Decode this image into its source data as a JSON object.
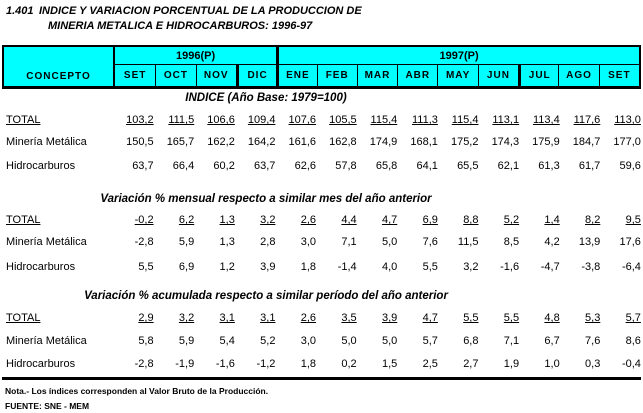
{
  "title": {
    "number": "1.401",
    "line1": "INDICE Y VARIACION PORCENTUAL DE LA PRODUCCION DE",
    "line2": "MINERIA METALICA E HIDROCARBUROS: 1996-97"
  },
  "table": {
    "concept_header": "CONCEPTO",
    "year_groups": [
      {
        "label": "1996(P)",
        "span": 4
      },
      {
        "label": "1997(P)",
        "span": 9
      }
    ],
    "months": [
      "SET",
      "OCT",
      "NOV",
      "DIC",
      "ENE",
      "FEB",
      "MAR",
      "ABR",
      "MAY",
      "JUN",
      "JUL",
      "AGO",
      "SET"
    ]
  },
  "sections": [
    {
      "title": "INDICE (Año Base: 1979=100)",
      "rows": [
        {
          "label": "TOTAL",
          "underline": true,
          "values": [
            "103,2",
            "111,5",
            "106,6",
            "109,4",
            "107,6",
            "105,5",
            "115,4",
            "111,3",
            "115,4",
            "113,1",
            "113,4",
            "117,6",
            "113,0"
          ]
        },
        {
          "label": "Minería Metálica",
          "underline": false,
          "values": [
            "150,5",
            "165,7",
            "162,2",
            "164,2",
            "161,6",
            "162,8",
            "174,9",
            "168,1",
            "175,2",
            "174,3",
            "175,9",
            "184,7",
            "177,0"
          ]
        },
        {
          "label": "Hidrocarburos",
          "underline": false,
          "values": [
            "63,7",
            "66,4",
            "60,2",
            "63,7",
            "62,6",
            "57,8",
            "65,8",
            "64,1",
            "65,5",
            "62,1",
            "61,3",
            "61,7",
            "59,6"
          ]
        }
      ]
    },
    {
      "title": "Variación % mensual respecto a similar mes del año anterior",
      "rows": [
        {
          "label": "TOTAL",
          "underline": true,
          "values": [
            "-0,2",
            "6,2",
            "1,3",
            "3,2",
            "2,6",
            "4,4",
            "4,7",
            "6,9",
            "8,8",
            "5,2",
            "1,4",
            "8,2",
            "9,5"
          ]
        },
        {
          "label": "Minería Metálica",
          "underline": false,
          "values": [
            "-2,8",
            "5,9",
            "1,3",
            "2,8",
            "3,0",
            "7,1",
            "5,0",
            "7,6",
            "11,5",
            "8,5",
            "4,2",
            "13,9",
            "17,6"
          ]
        },
        {
          "label": "Hidrocarburos",
          "underline": false,
          "values": [
            "5,5",
            "6,9",
            "1,2",
            "3,9",
            "1,8",
            "-1,4",
            "4,0",
            "5,5",
            "3,2",
            "-1,6",
            "-4,7",
            "-3,8",
            "-6,4"
          ]
        }
      ]
    },
    {
      "title": "Variación % acumulada respecto a similar período del año anterior",
      "rows": [
        {
          "label": "TOTAL",
          "underline": true,
          "values": [
            "2,9",
            "3,2",
            "3,1",
            "3,1",
            "2,6",
            "3,5",
            "3,9",
            "4,7",
            "5,5",
            "5,5",
            "4,8",
            "5,3",
            "5,7"
          ]
        },
        {
          "label": "Minería Metálica",
          "underline": false,
          "values": [
            "5,8",
            "5,9",
            "5,4",
            "5,2",
            "3,0",
            "5,0",
            "5,0",
            "5,7",
            "6,8",
            "7,1",
            "6,7",
            "7,6",
            "8,6"
          ]
        },
        {
          "label": "Hidrocarburos",
          "underline": false,
          "values": [
            "-2,8",
            "-1,9",
            "-1,6",
            "-1,2",
            "1,8",
            "0,2",
            "1,5",
            "2,5",
            "2,7",
            "1,9",
            "1,0",
            "0,3",
            "-0,4"
          ]
        }
      ]
    }
  ],
  "footer": {
    "note": "Nota.- Los índices corresponden al Valor Bruto de la Producción.",
    "source": "FUENTE: SNE - MEM"
  },
  "colors": {
    "header_bg": "#00FFFF",
    "border": "#000000",
    "text": "#000000",
    "page_bg": "#FFFFFF"
  }
}
